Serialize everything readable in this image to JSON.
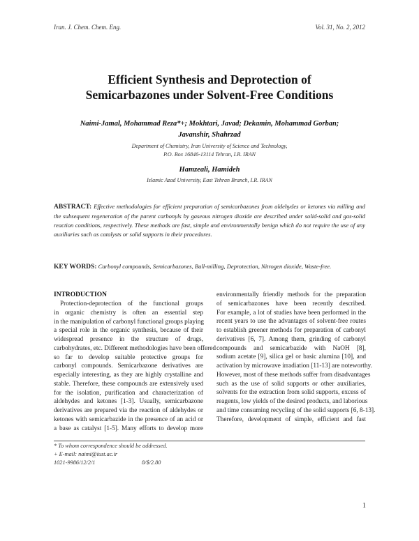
{
  "header": {
    "journal": "Iran. J. Chem. Chem. Eng.",
    "volume": "Vol. 31, No. 2, 2012"
  },
  "title_lines": [
    "Efficient Synthesis and Deprotection of",
    "Semicarbazones under Solvent-Free Conditions"
  ],
  "authors_line1": "Naimi-Jamal, Mohammad Reza*+; Mokhtari, Javad; Dekamin, Mohammad Gorban;",
  "authors_line2": "Javanshir, Shahrzad",
  "affiliation1": [
    "Department of Chemistry, Iran University of Science and Technology,",
    "P.O. Box 16846-13114 Tehran, I.R. IRAN"
  ],
  "author2": "Hamzeali, Hamideh",
  "affiliation2": "Islamic Azad University, East Tehran Branch, I.R. IRAN",
  "abstract": {
    "label": "ABSTRACT:",
    "text": "Effective methodologies for efficient preparation of semicarbazones from aldehydes or ketones via milling and the subsequent regeneration of the parent carbonyls by gaseous nitrogen dioxide are described under solid-solid and gas-solid reaction conditions, respectively. These methods are fast, simple and environmentally benign which do not require the use of any auxiliaries such as catalysts or solid supports in their procedures."
  },
  "keywords": {
    "label": "KEY WORDS:",
    "text": "Carbonyl compounds, Semicarbazones, Ball-milling, Deprotection, Nitrogen dioxide, Waste-free."
  },
  "introduction": {
    "heading": "INTRODUCTION",
    "left_lines": [
      "Protection-deprotection of the functional groups",
      "in organic chemistry is often an essential step",
      "in the manipulation of carbonyl functional groups playing",
      "a special role in the organic synthesis, because of their",
      "widespread presence in the structure of drugs,",
      "carbohydrates, etc. Different methodologies have been offered",
      "so far to develop suitable protective groups for",
      "carbonyl compounds. Semicarbazone derivatives are",
      "especially interesting, as they are highly crystalline and",
      "stable. Therefore, these compounds are extensively used",
      "for the isolation, purification and characterization of",
      "aldehydes and ketones [1-3]. Usually, semicarbazone",
      "derivatives are prepared via the reaction of aldehydes or",
      "ketones with semicarbazide in the presence of an acid or",
      "a base as catalyst [1-5]. Many efforts to develop more"
    ],
    "right_lines": [
      "environmentally friendly methods for the preparation",
      "of semicarbazones have been recently described.",
      "For example, a lot of studies have been performed in the",
      "recent years to use the advantages of solvent-free routes",
      "to establish greener methods for preparation of carbonyl",
      "derivatives [6, 7]. Among them, grinding of carbonyl",
      "compounds and semicarbazide with NaOH [8],",
      "sodium acetate [9], silica gel or basic alumina [10], and",
      "activation by microwave irradiation [11-13] are noteworthy.",
      "However, most of these methods suffer from disadvantages",
      "such as the use of solid supports or other auxiliaries,",
      "solvents for the extraction from solid supports, excess of",
      "reagents, low yields of the desired products, and laborious",
      "and time consuming recycling of the solid supports [6, 8-13].",
      "Therefore, development of simple, efficient and fast"
    ]
  },
  "footnotes": {
    "correspondence": "* To whom correspondence should be addressed.",
    "email": "+ E-mail: naimi@iust.ac.ir",
    "code": "1021-9986/12/2/1",
    "price": "8/$/2.80"
  },
  "page_number": "1"
}
